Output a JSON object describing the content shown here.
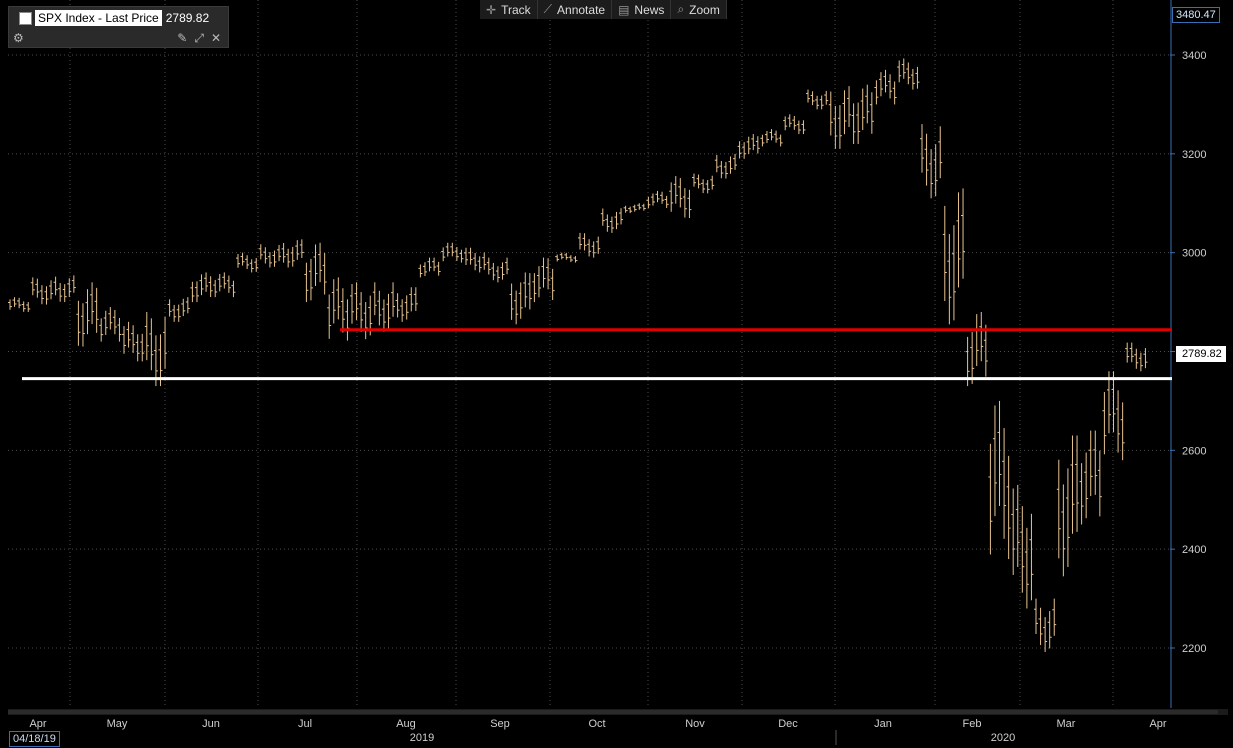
{
  "window": {
    "security_label": "SPX Index - Last Price",
    "last_price": "2789.82",
    "top_scale_value": "3480.47",
    "start_date": "04/18/19",
    "settings_icon": "gear-icon",
    "pin_icon": "pin-icon",
    "resize_icon": "resize-icon",
    "close_icon": "close-icon"
  },
  "toolbar": {
    "track_label": "Track",
    "annotate_label": "Annotate",
    "news_label": "News",
    "zoom_label": "Zoom"
  },
  "colors": {
    "background": "#000000",
    "bars": "#E8C48F",
    "resistance_line": "#E00000",
    "support_line": "#FFFFFF",
    "grid": "#4A4A4A"
  },
  "chart_data": {
    "type": "ohlc",
    "series": [
      {
        "values_are": "approximate weekly high/low ranges read from chart",
        "bars": [
          {
            "period": "Apr-19 w3",
            "high": 2910,
            "low": 2880
          },
          {
            "period": "Apr-19 w4",
            "high": 2950,
            "low": 2895
          },
          {
            "period": "May-19 w1",
            "high": 2954,
            "low": 2900
          },
          {
            "period": "May-19 w2",
            "high": 2940,
            "low": 2810
          },
          {
            "period": "May-19 w3",
            "high": 2890,
            "low": 2820
          },
          {
            "period": "May-19 w4",
            "high": 2860,
            "low": 2780
          },
          {
            "period": "Jun-19 w1",
            "high": 2880,
            "low": 2730
          },
          {
            "period": "Jun-19 w2",
            "high": 2910,
            "low": 2860
          },
          {
            "period": "Jun-19 w3",
            "high": 2960,
            "low": 2900
          },
          {
            "period": "Jun-19 w4",
            "high": 2960,
            "low": 2910
          },
          {
            "period": "Jul-19 w1",
            "high": 3000,
            "low": 2960
          },
          {
            "period": "Jul-19 w2",
            "high": 3017,
            "low": 2970
          },
          {
            "period": "Jul-19 w3",
            "high": 3027,
            "low": 2970
          },
          {
            "period": "Jul-19 w4",
            "high": 3020,
            "low": 2900
          },
          {
            "period": "Aug-19 w1",
            "high": 2950,
            "low": 2822
          },
          {
            "period": "Aug-19 w2",
            "high": 2940,
            "low": 2825
          },
          {
            "period": "Aug-19 w3",
            "high": 2940,
            "low": 2840
          },
          {
            "period": "Aug-19 w4",
            "high": 2930,
            "low": 2860
          },
          {
            "period": "Sep-19 w1",
            "high": 2990,
            "low": 2950
          },
          {
            "period": "Sep-19 w2",
            "high": 3020,
            "low": 2980
          },
          {
            "period": "Sep-19 w3",
            "high": 3010,
            "low": 2960
          },
          {
            "period": "Sep-19 w4",
            "high": 2990,
            "low": 2940
          },
          {
            "period": "Oct-19 w1",
            "high": 2960,
            "low": 2855
          },
          {
            "period": "Oct-19 w2",
            "high": 2990,
            "low": 2900
          },
          {
            "period": "Oct-19 w3",
            "high": 3000,
            "low": 2980
          },
          {
            "period": "Oct-19 w4",
            "high": 3040,
            "low": 2990
          },
          {
            "period": "Nov-19 w1",
            "high": 3090,
            "low": 3040
          },
          {
            "period": "Nov-19 w2",
            "high": 3100,
            "low": 3080
          },
          {
            "period": "Nov-19 w3",
            "high": 3125,
            "low": 3090
          },
          {
            "period": "Nov-19 w4",
            "high": 3155,
            "low": 3070
          },
          {
            "period": "Dec-19 w1",
            "high": 3160,
            "low": 3120
          },
          {
            "period": "Dec-19 w2",
            "high": 3200,
            "low": 3150
          },
          {
            "period": "Dec-19 w3",
            "high": 3240,
            "low": 3190
          },
          {
            "period": "Dec-19 w4",
            "high": 3250,
            "low": 3215
          },
          {
            "period": "Jan-20 w1",
            "high": 3280,
            "low": 3240
          },
          {
            "period": "Jan-20 w2",
            "high": 3330,
            "low": 3290
          },
          {
            "period": "Jan-20 w3",
            "high": 3337,
            "low": 3210
          },
          {
            "period": "Jan-20 w4",
            "high": 3340,
            "low": 3220
          },
          {
            "period": "Feb-20 w1",
            "high": 3370,
            "low": 3300
          },
          {
            "period": "Feb-20 w2",
            "high": 3393,
            "low": 3330
          },
          {
            "period": "Feb-20 w3",
            "high": 3260,
            "low": 3110
          },
          {
            "period": "Feb-20 w4",
            "high": 3130,
            "low": 2855
          },
          {
            "period": "Mar-20 w1",
            "high": 2880,
            "low": 2730
          },
          {
            "period": "Mar-20 w2",
            "high": 2700,
            "low": 2380
          },
          {
            "period": "Mar-20 w3",
            "high": 2530,
            "low": 2280
          },
          {
            "period": "Mar-20 w4",
            "high": 2300,
            "low": 2192
          },
          {
            "period": "Mar-20 w5",
            "high": 2630,
            "low": 2345
          },
          {
            "period": "Mar-20 w6",
            "high": 2640,
            "low": 2450
          },
          {
            "period": "Apr-20 w1",
            "high": 2760,
            "low": 2580
          },
          {
            "period": "Apr-20 w2",
            "high": 2818,
            "low": 2760
          }
        ]
      }
    ],
    "x_axis": {
      "month_labels": [
        "Apr",
        "May",
        "Jun",
        "Jul",
        "Aug",
        "Sep",
        "Oct",
        "Nov",
        "Dec",
        "Jan",
        "Feb",
        "Mar",
        "Apr"
      ],
      "year_labels": [
        "2019",
        "2020"
      ]
    },
    "y_axis": {
      "ticks": [
        2200,
        2400,
        2600,
        2800,
        3000,
        3200,
        3400
      ],
      "tick_labels": [
        "2200",
        "2400",
        "2600",
        "2800",
        "3000",
        "3200",
        "3400"
      ],
      "range": [
        2100,
        3480.47
      ],
      "position": "right"
    },
    "lines": [
      {
        "name": "resistance",
        "value": 2844,
        "color": "#E00000"
      },
      {
        "name": "support",
        "value": 2745,
        "color": "#FFFFFF"
      }
    ],
    "grid": true
  }
}
